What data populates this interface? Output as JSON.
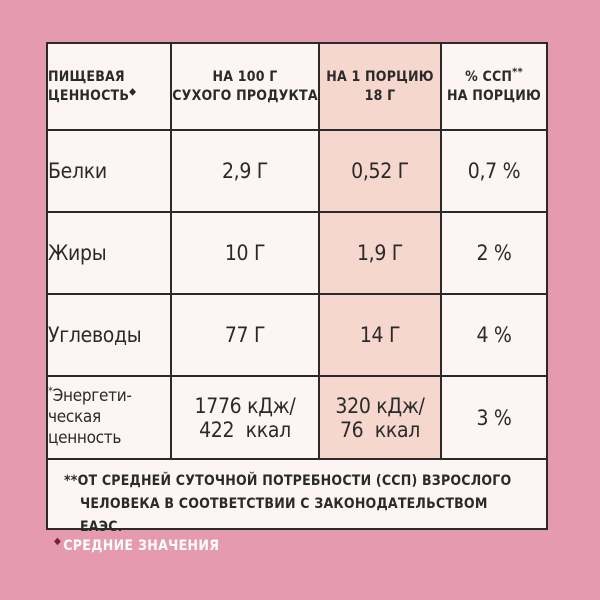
{
  "table": {
    "headers": {
      "col1_line1": "ПИЩЕВАЯ",
      "col1_line2": "ЦЕННОСТЬ",
      "col1_mark": "◆",
      "col2_line1": "НА 100 Г",
      "col2_line2": "СУХОГО ПРОДУКТА",
      "col3_line1": "НА 1 ПОРЦИЮ",
      "col3_line2": "18 Г",
      "col4_line1": "% ССП",
      "col4_mark": "**",
      "col4_line2": "НА ПОРЦИЮ"
    },
    "rows": [
      {
        "name": "Белки",
        "per100": "2,9 Г",
        "portion": "0,52 Г",
        "percent": "0,7 %"
      },
      {
        "name": "Жиры",
        "per100": "10 Г",
        "portion": "1,9 Г",
        "percent": "2 %"
      },
      {
        "name": "Углеводы",
        "per100": "77 Г",
        "portion": "14 Г",
        "percent": "4 %"
      }
    ],
    "energy": {
      "mark": "*",
      "name_line1": "Энергети-",
      "name_line2": "ческая",
      "name_line3": "ценность",
      "per100_line1": "1776 кДж/",
      "per100_line2": "422  ккал",
      "portion_line1": "320 кДж/",
      "portion_line2": "76  ккал",
      "percent": "3 %"
    }
  },
  "footnote": {
    "line1": "**ОТ СРЕДНЕЙ СУТОЧНОЙ ПОТРЕБНОСТИ (ССП) ВЗРОСЛОГО",
    "line2": "ЧЕЛОВЕКА В СООТВЕТСТВИИ С ЗАКОНОДАТЕЛЬСТВОМ ЕАЭС."
  },
  "bottom_note": {
    "mark": "◆",
    "text": "СРЕДНИЕ ЗНАЧЕНИЯ"
  },
  "colors": {
    "background": "#e59aaf",
    "card": "#fdf5f3",
    "portion_column": "#f6d7ce",
    "border": "#2a2a2a"
  }
}
